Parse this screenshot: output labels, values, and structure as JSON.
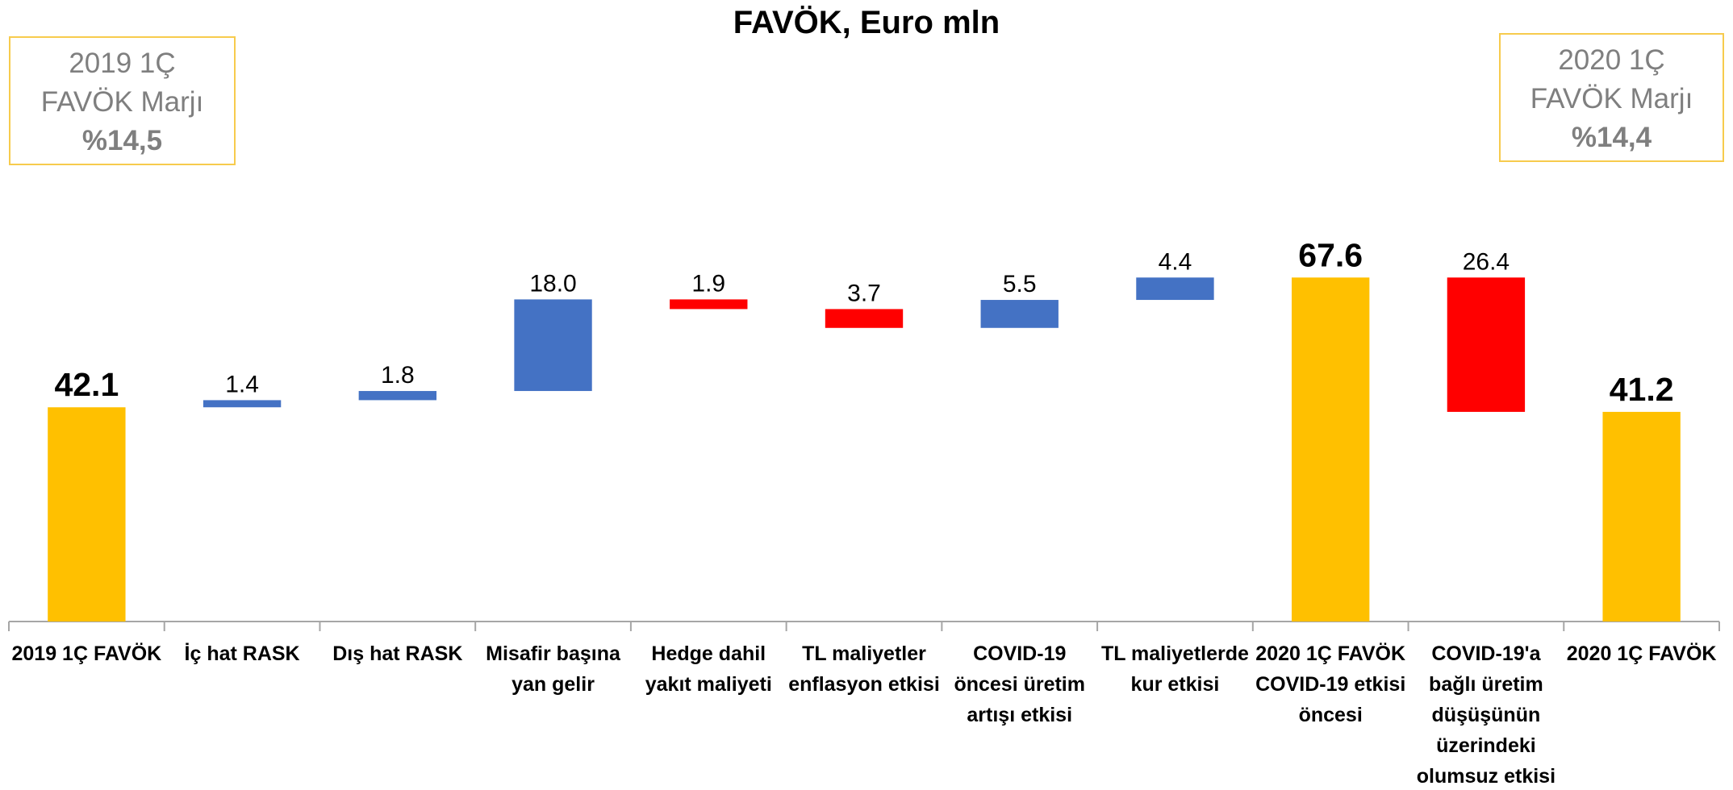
{
  "chart_data": {
    "type": "waterfall",
    "title": "FAVÖK, Euro mln",
    "categories": [
      "2019 1Ç FAVÖK",
      "İç hat RASK",
      "Dış hat RASK",
      "Misafir başına yan gelir",
      "Hedge dahil yakıt maliyeti",
      "TL maliyetler enflasyon etkisi",
      "COVID-19 öncesi üretim artışı etkisi",
      "TL maliyetlerde kur etkisi",
      "2020 1Ç FAVÖK COVID-19 etkisi öncesi",
      "COVID-19'a bağlı üretim düşüşünün üzerindeki olumsuz etkisi",
      "2020 1Ç FAVÖK"
    ],
    "values": [
      42.1,
      1.4,
      1.8,
      18.0,
      1.9,
      3.7,
      5.5,
      4.4,
      67.6,
      26.4,
      41.2
    ],
    "value_labels": [
      "42.1",
      "1.4",
      "1.8",
      "18.0",
      "1.9",
      "3.7",
      "5.5",
      "4.4",
      "67.6",
      "26.4",
      "41.2"
    ],
    "steps": [
      "total",
      "up",
      "up",
      "up",
      "down",
      "down",
      "up",
      "up",
      "total",
      "down",
      "total"
    ],
    "colors": {
      "total": "#FFC000",
      "up": "#4472C4",
      "down": "#FF0000"
    },
    "ylim": [
      0,
      80
    ],
    "annotations": [
      {
        "lines": [
          "2019 1Ç",
          "FAVÖK  Marjı",
          "%14,5"
        ]
      },
      {
        "lines": [
          "2020 1Ç",
          "FAVÖK  Marjı",
          "%14,4"
        ]
      }
    ]
  }
}
